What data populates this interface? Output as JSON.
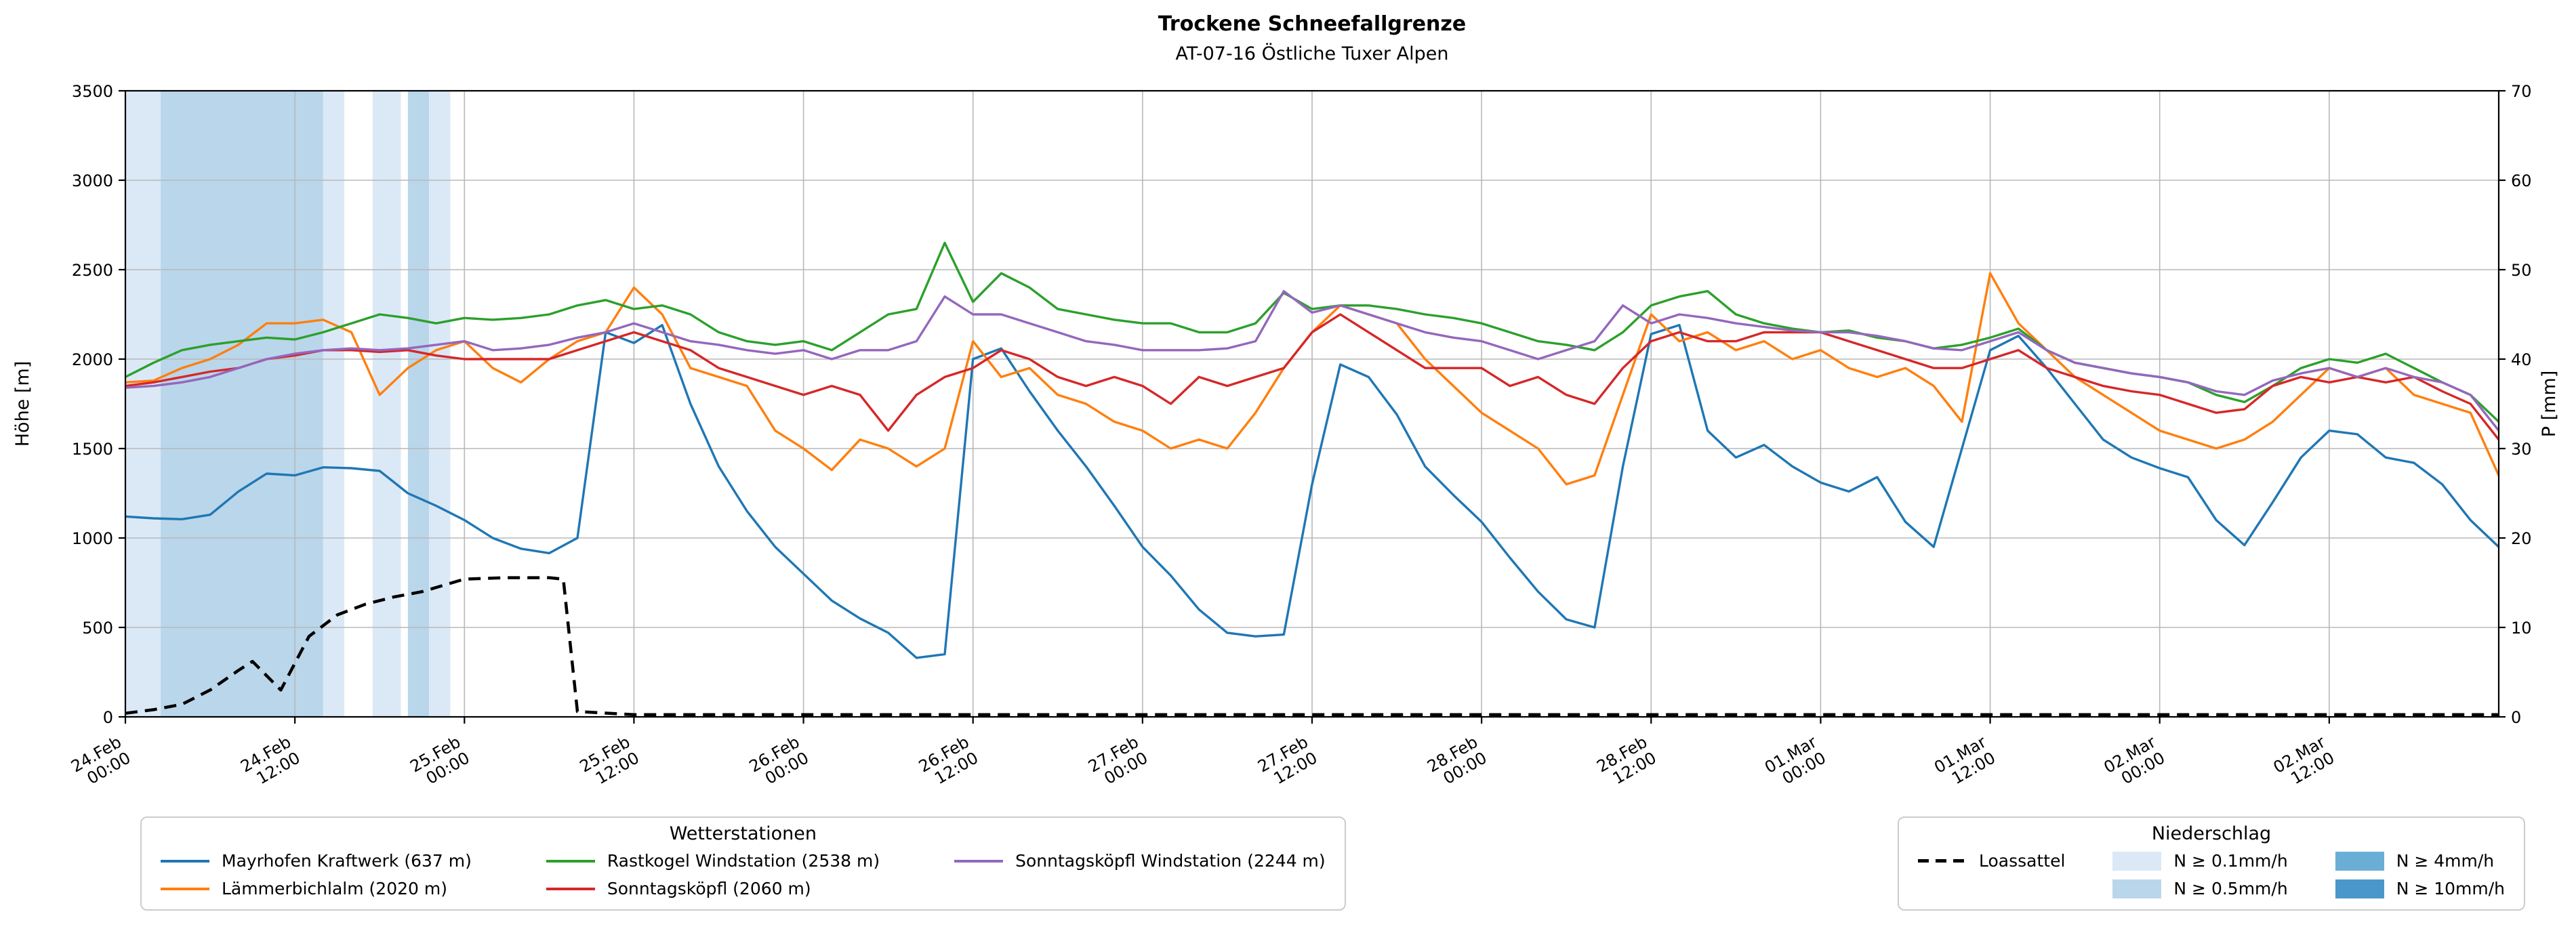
{
  "figure": {
    "title": "Trockene Schneefallgrenze",
    "subtitle": "AT-07-16 Östliche Tuxer Alpen",
    "ylabel_left": "Höhe [m]",
    "ylabel_right": "P [mm]"
  },
  "legends": {
    "stations": {
      "title": "Wetterstationen",
      "items": [
        "mayrhofen",
        "laemmerbichlalm",
        "rastkogel",
        "sonntagskoepfl",
        "sonntagskoepfl-wind"
      ]
    },
    "precip": {
      "title": "Niederschlag",
      "items": [
        {
          "series_id": "loassattel"
        },
        {
          "label": "N ≥ 0.1mm/h",
          "level": "0.1"
        },
        {
          "label": "N ≥ 0.5mm/h",
          "level": "0.5"
        },
        {
          "label": "N ≥ 4mm/h",
          "level": "4"
        },
        {
          "label": "N ≥ 10mm/h",
          "level": "10"
        }
      ]
    }
  },
  "chart_data": {
    "type": "line",
    "title": "Trockene Schneefallgrenze",
    "subtitle": "AT-07-16 Östliche Tuxer Alpen",
    "x_unit": "hours since 24.Feb 00:00",
    "x_range": [
      0,
      168
    ],
    "ylim_left": [
      0,
      3500
    ],
    "ylim_right": [
      0,
      70
    ],
    "ylabel_left": "Höhe [m]",
    "ylabel_right": "P [mm]",
    "grid": true,
    "y_ticks_left": [
      0,
      500,
      1000,
      1500,
      2000,
      2500,
      3000,
      3500
    ],
    "y_ticks_right": [
      0,
      10,
      20,
      30,
      40,
      50,
      60,
      70
    ],
    "x_ticks": [
      {
        "date": "24.Feb",
        "time": "00:00",
        "h": 0
      },
      {
        "date": "24.Feb",
        "time": "12:00",
        "h": 12
      },
      {
        "date": "25.Feb",
        "time": "00:00",
        "h": 24
      },
      {
        "date": "25.Feb",
        "time": "12:00",
        "h": 36
      },
      {
        "date": "26.Feb",
        "time": "00:00",
        "h": 48
      },
      {
        "date": "26.Feb",
        "time": "12:00",
        "h": 60
      },
      {
        "date": "27.Feb",
        "time": "00:00",
        "h": 72
      },
      {
        "date": "27.Feb",
        "time": "12:00",
        "h": 84
      },
      {
        "date": "28.Feb",
        "time": "00:00",
        "h": 96
      },
      {
        "date": "28.Feb",
        "time": "12:00",
        "h": 108
      },
      {
        "date": "01.Mar",
        "time": "00:00",
        "h": 120
      },
      {
        "date": "01.Mar",
        "time": "12:00",
        "h": 132
      },
      {
        "date": "02.Mar",
        "time": "00:00",
        "h": 144
      },
      {
        "date": "02.Mar",
        "time": "12:00",
        "h": 156
      }
    ],
    "precip_colors": {
      "0.1": "#dbe9f6",
      "0.5": "#bad6eb",
      "4": "#6aaed6",
      "10": "#4a98c9"
    },
    "precip_bands": [
      {
        "start_h": 0,
        "end_h": 2.5,
        "level": "0.1"
      },
      {
        "start_h": 2.5,
        "end_h": 14,
        "level": "0.5"
      },
      {
        "start_h": 14,
        "end_h": 15.5,
        "level": "0.1"
      },
      {
        "start_h": 17.5,
        "end_h": 19.5,
        "level": "0.1"
      },
      {
        "start_h": 20,
        "end_h": 21.5,
        "level": "0.5"
      },
      {
        "start_h": 21.5,
        "end_h": 23,
        "level": "0.1"
      }
    ],
    "series": [
      {
        "id": "mayrhofen",
        "name": "Mayrhofen Kraftwerk (637 m)",
        "color": "#1f77b4",
        "width": 3.4,
        "x_start": 0,
        "x_step": 2,
        "values": [
          1120,
          1110,
          1105,
          1130,
          1260,
          1360,
          1350,
          1395,
          1390,
          1375,
          1250,
          1180,
          1100,
          1000,
          940,
          915,
          1000,
          2150,
          2090,
          2190,
          1750,
          1400,
          1150,
          950,
          800,
          650,
          550,
          470,
          330,
          350,
          2000,
          2060,
          1820,
          1600,
          1400,
          1180,
          950,
          790,
          600,
          470,
          450,
          460,
          1300,
          1970,
          1900,
          1690,
          1400,
          1240,
          1090,
          890,
          700,
          545,
          500,
          1400,
          2140,
          2190,
          1600,
          1450,
          1520,
          1400,
          1310,
          1260,
          1340,
          1090,
          950,
          1500,
          2050,
          2130,
          1950,
          1750,
          1550,
          1450,
          1390,
          1340,
          1100,
          960,
          1200,
          1450,
          1600,
          1580,
          1450,
          1420,
          1300,
          1100,
          950
        ]
      },
      {
        "id": "laemmerbichlalm",
        "name": "Lämmerbichlalm (2020 m)",
        "color": "#ff7f0e",
        "width": 3.4,
        "x_start": 0,
        "x_step": 2,
        "values": [
          1870,
          1880,
          1950,
          2000,
          2080,
          2200,
          2200,
          2220,
          2150,
          1800,
          1950,
          2050,
          2100,
          1950,
          1870,
          2000,
          2100,
          2150,
          2400,
          2250,
          1950,
          1900,
          1850,
          1600,
          1500,
          1380,
          1550,
          1500,
          1400,
          1500,
          2100,
          1900,
          1950,
          1800,
          1750,
          1650,
          1600,
          1500,
          1550,
          1500,
          1700,
          1950,
          2150,
          2300,
          2250,
          2200,
          2000,
          1850,
          1700,
          1600,
          1500,
          1300,
          1350,
          1800,
          2250,
          2100,
          2150,
          2050,
          2100,
          2000,
          2050,
          1950,
          1900,
          1950,
          1850,
          1650,
          2480,
          2200,
          2050,
          1900,
          1800,
          1700,
          1600,
          1550,
          1500,
          1550,
          1650,
          1800,
          1950,
          1900,
          1950,
          1800,
          1750,
          1700,
          1350
        ]
      },
      {
        "id": "rastkogel",
        "name": "Rastkogel Windstation (2538 m)",
        "color": "#2ca02c",
        "width": 3.4,
        "x_start": 0,
        "x_step": 2,
        "values": [
          1900,
          1980,
          2050,
          2080,
          2100,
          2120,
          2110,
          2150,
          2200,
          2250,
          2230,
          2200,
          2230,
          2220,
          2230,
          2250,
          2300,
          2330,
          2280,
          2300,
          2250,
          2150,
          2100,
          2080,
          2100,
          2050,
          2150,
          2250,
          2280,
          2650,
          2320,
          2480,
          2400,
          2280,
          2250,
          2220,
          2200,
          2200,
          2150,
          2150,
          2200,
          2370,
          2280,
          2300,
          2300,
          2280,
          2250,
          2230,
          2200,
          2150,
          2100,
          2080,
          2050,
          2150,
          2300,
          2350,
          2380,
          2250,
          2200,
          2170,
          2150,
          2160,
          2120,
          2100,
          2060,
          2080,
          2120,
          2170,
          2050,
          1980,
          1950,
          1920,
          1900,
          1870,
          1800,
          1760,
          1850,
          1950,
          2000,
          1980,
          2030,
          1950,
          1870,
          1800,
          1650
        ]
      },
      {
        "id": "sonntagskoepfl",
        "name": "Sonntagsköpfl (2060 m)",
        "color": "#d62728",
        "width": 3.4,
        "x_start": 0,
        "x_step": 2,
        "values": [
          1850,
          1870,
          1900,
          1930,
          1950,
          2000,
          2020,
          2050,
          2050,
          2040,
          2050,
          2020,
          2000,
          2000,
          2000,
          2000,
          2050,
          2100,
          2150,
          2100,
          2050,
          1950,
          1900,
          1850,
          1800,
          1850,
          1800,
          1600,
          1800,
          1900,
          1950,
          2050,
          2000,
          1900,
          1850,
          1900,
          1850,
          1750,
          1900,
          1850,
          1900,
          1950,
          2150,
          2250,
          2150,
          2050,
          1950,
          1950,
          1950,
          1850,
          1900,
          1800,
          1750,
          1950,
          2100,
          2150,
          2100,
          2100,
          2150,
          2150,
          2150,
          2100,
          2050,
          2000,
          1950,
          1950,
          2000,
          2050,
          1950,
          1900,
          1850,
          1820,
          1800,
          1750,
          1700,
          1720,
          1850,
          1900,
          1870,
          1900,
          1870,
          1900,
          1820,
          1750,
          1550
        ]
      },
      {
        "id": "sonntagskoepfl-wind",
        "name": "Sonntagsköpfl Windstation (2244 m)",
        "color": "#9467bd",
        "width": 3.4,
        "x_start": 0,
        "x_step": 2,
        "values": [
          1840,
          1850,
          1870,
          1900,
          1950,
          2000,
          2030,
          2050,
          2060,
          2050,
          2060,
          2080,
          2100,
          2050,
          2060,
          2080,
          2120,
          2150,
          2200,
          2150,
          2100,
          2080,
          2050,
          2030,
          2050,
          2000,
          2050,
          2050,
          2100,
          2350,
          2250,
          2250,
          2200,
          2150,
          2100,
          2080,
          2050,
          2050,
          2050,
          2060,
          2100,
          2380,
          2260,
          2300,
          2250,
          2200,
          2150,
          2120,
          2100,
          2050,
          2000,
          2050,
          2100,
          2300,
          2200,
          2250,
          2230,
          2200,
          2180,
          2160,
          2150,
          2150,
          2130,
          2100,
          2060,
          2050,
          2100,
          2150,
          2050,
          1980,
          1950,
          1920,
          1900,
          1870,
          1820,
          1800,
          1880,
          1920,
          1950,
          1900,
          1950,
          1900,
          1870,
          1800,
          1600
        ]
      },
      {
        "id": "loassattel",
        "name": "Loassattel",
        "color": "#000000",
        "width": 4.5,
        "dash": "18 11",
        "x": [
          0,
          2,
          4,
          6,
          8,
          9,
          11,
          13,
          15,
          17,
          19,
          21,
          24,
          27,
          30,
          31,
          32,
          36,
          168
        ],
        "values": [
          20,
          40,
          70,
          150,
          260,
          310,
          150,
          450,
          570,
          630,
          670,
          700,
          770,
          778,
          778,
          770,
          30,
          12,
          12
        ]
      }
    ]
  }
}
